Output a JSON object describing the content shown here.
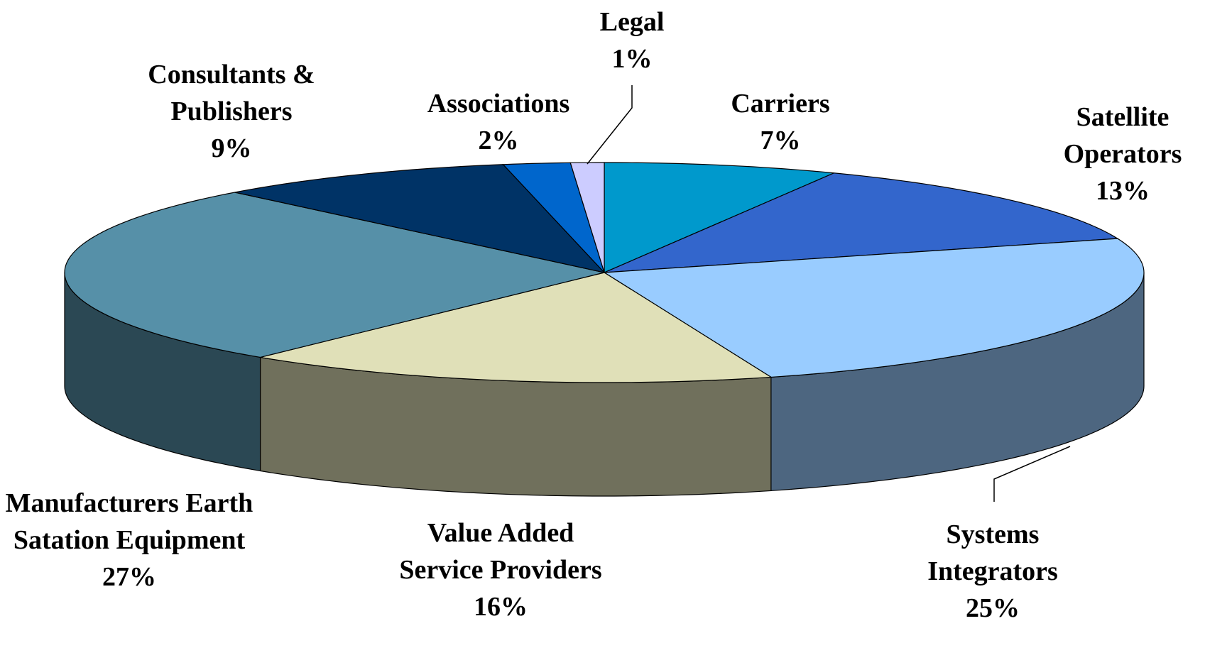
{
  "chart_data": {
    "type": "pie",
    "three_d": true,
    "categories": [
      "Carriers",
      "Satellite Operators",
      "Systems Integrators",
      "Value Added Service Providers",
      "Manufacturers Earth Satation Equipment",
      "Consultants & Publishers",
      "Associations",
      "Legal"
    ],
    "values": [
      7,
      13,
      25,
      16,
      27,
      9,
      2,
      1
    ],
    "value_labels": [
      "7%",
      "13%",
      "25%",
      "16%",
      "27%",
      "9%",
      "2%",
      "1%"
    ],
    "colors": [
      "#0099cc",
      "#3366cc",
      "#99ccff",
      "#e0e0b8",
      "#5690a8",
      "#003366",
      "#0066cc",
      "#ccccff"
    ]
  }
}
